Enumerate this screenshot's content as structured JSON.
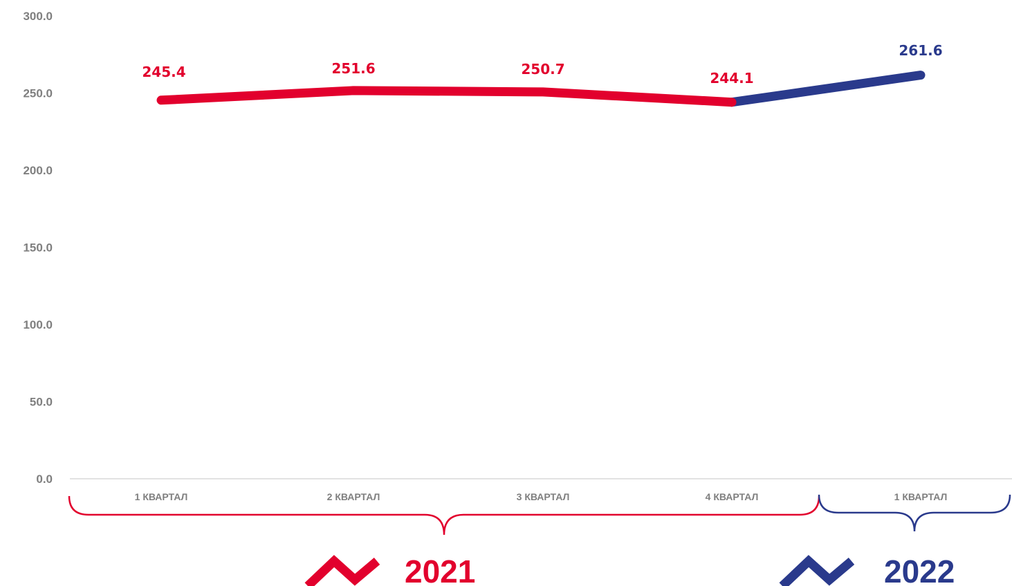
{
  "colors": {
    "y2021": "#e2002d",
    "y2022": "#2a3a8c",
    "axis": "#d9d9d9",
    "tick": "#7f7f7f"
  },
  "chart_data": {
    "type": "line",
    "ylim": [
      0,
      300
    ],
    "yticks": [
      "0.0",
      "50.0",
      "100.0",
      "150.0",
      "200.0",
      "250.0",
      "300.0"
    ],
    "categories": [
      "1 КВАРТАЛ",
      "2 КВАРТАЛ",
      "3 КВАРТАЛ",
      "4 КВАРТАЛ",
      "1 КВАРТАЛ"
    ],
    "values": [
      245.4,
      251.6,
      250.7,
      244.1,
      261.6
    ],
    "value_labels": [
      "245.4",
      "251.6",
      "250.7",
      "244.1",
      "261.6"
    ],
    "groups": [
      {
        "label": "2021",
        "from": 0,
        "to": 3,
        "color": "#e2002d"
      },
      {
        "label": "2022",
        "from": 3,
        "to": 4,
        "color": "#2a3a8c"
      }
    ],
    "grid": false,
    "legend": "none"
  }
}
